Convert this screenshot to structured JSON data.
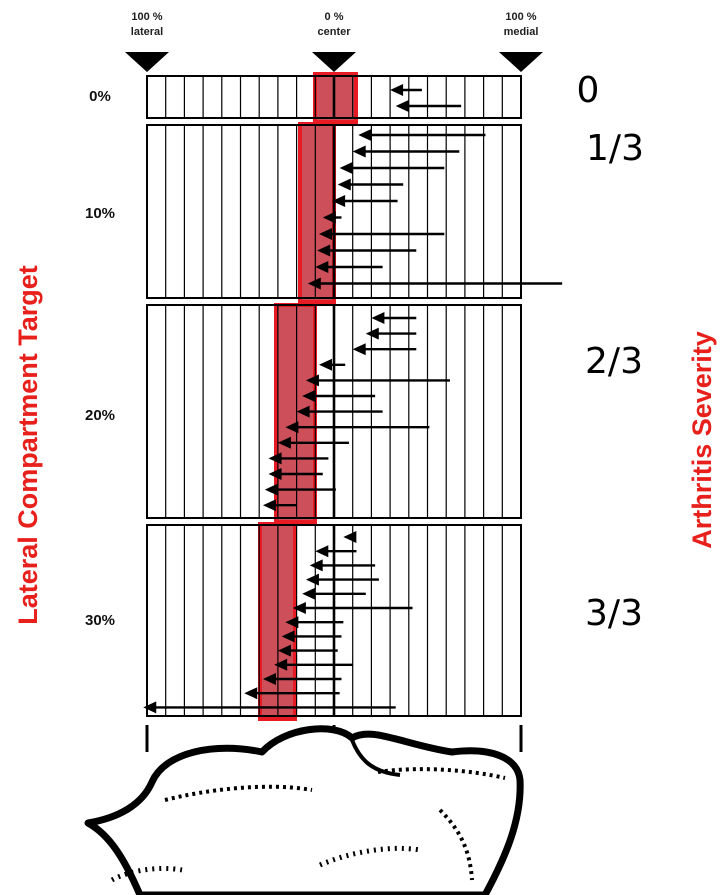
{
  "header": {
    "lateral": [
      "100 %",
      "lateral"
    ],
    "center": [
      "0 %",
      "center"
    ],
    "medial": [
      "100 %",
      "medial"
    ]
  },
  "left_axis_title": "Lateral  Compartment Target",
  "right_axis_title": "Arthritis Severity",
  "colors": {
    "highlight_fill": "#cc4f5a",
    "highlight_stroke": "#e81a23",
    "label_red": "#e8201c",
    "ink": "#000000"
  },
  "panels": [
    {
      "target_label": "0%",
      "severity_label": "0",
      "vectors": [
        {
          "from": 0.47,
          "to": 0.3
        },
        {
          "from": 0.68,
          "to": 0.33
        }
      ]
    },
    {
      "target_label": "10%",
      "severity_label": "1/3",
      "vectors": [
        {
          "from": 0.81,
          "to": 0.13
        },
        {
          "from": 0.67,
          "to": 0.1
        },
        {
          "from": 0.59,
          "to": 0.03
        },
        {
          "from": 0.37,
          "to": 0.02
        },
        {
          "from": 0.34,
          "to": -0.01
        },
        {
          "from": 0.04,
          "to": -0.06
        },
        {
          "from": 0.59,
          "to": -0.08
        },
        {
          "from": 0.44,
          "to": -0.09
        },
        {
          "from": 0.26,
          "to": -0.1
        },
        {
          "from": 1.22,
          "to": -0.14
        }
      ]
    },
    {
      "target_label": "20%",
      "severity_label": "2/3",
      "vectors": [
        {
          "from": 0.44,
          "to": 0.2
        },
        {
          "from": 0.44,
          "to": 0.17
        },
        {
          "from": 0.44,
          "to": 0.1
        },
        {
          "from": 0.06,
          "to": -0.08
        },
        {
          "from": 0.62,
          "to": -0.15
        },
        {
          "from": 0.22,
          "to": -0.17
        },
        {
          "from": 0.26,
          "to": -0.2
        },
        {
          "from": 0.51,
          "to": -0.26
        },
        {
          "from": 0.08,
          "to": -0.3
        },
        {
          "from": -0.03,
          "to": -0.35
        },
        {
          "from": -0.06,
          "to": -0.35
        },
        {
          "from": 0.01,
          "to": -0.37
        },
        {
          "from": -0.2,
          "to": -0.38
        }
      ]
    },
    {
      "target_label": "30%",
      "severity_label": "3/3",
      "vectors": [
        {
          "from": 0.1,
          "to": 0.05
        },
        {
          "from": 0.12,
          "to": -0.1
        },
        {
          "from": 0.22,
          "to": -0.13
        },
        {
          "from": 0.24,
          "to": -0.15
        },
        {
          "from": 0.17,
          "to": -0.17
        },
        {
          "from": 0.42,
          "to": -0.22
        },
        {
          "from": 0.05,
          "to": -0.26
        },
        {
          "from": 0.04,
          "to": -0.28
        },
        {
          "from": 0.02,
          "to": -0.3
        },
        {
          "from": 0.1,
          "to": -0.32
        },
        {
          "from": 0.04,
          "to": -0.38
        },
        {
          "from": 0.03,
          "to": -0.48
        },
        {
          "from": 0.33,
          "to": -1.02
        }
      ]
    }
  ]
}
